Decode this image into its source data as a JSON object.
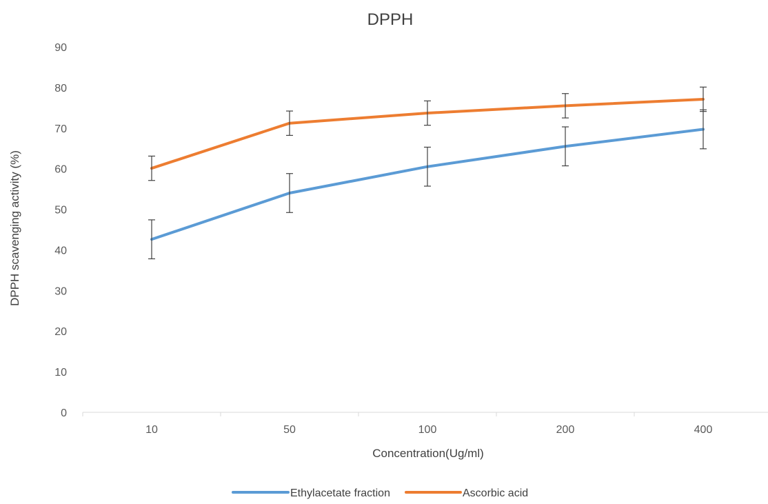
{
  "chart_data": {
    "type": "line",
    "title": "DPPH",
    "xlabel": "Concentration(Ug/ml)",
    "ylabel": "DPPH scavenging activity (%)",
    "categories": [
      "10",
      "50",
      "100",
      "200",
      "400"
    ],
    "ylim": [
      0,
      90
    ],
    "yticks": [
      0,
      10,
      20,
      30,
      40,
      50,
      60,
      70,
      80,
      90
    ],
    "grid": false,
    "legend_position": "bottom",
    "series": [
      {
        "name": "Ethylacetate fraction",
        "color": "#5B9BD5",
        "values": [
          42.6,
          54.0,
          60.5,
          65.5,
          69.7
        ],
        "error": [
          4.8,
          4.8,
          4.8,
          4.8,
          4.8
        ]
      },
      {
        "name": "Ascorbic acid",
        "color": "#ED7D31",
        "values": [
          60.1,
          71.2,
          73.7,
          75.5,
          77.1
        ],
        "error": [
          3.0,
          3.0,
          3.0,
          3.0,
          3.0
        ]
      }
    ]
  }
}
